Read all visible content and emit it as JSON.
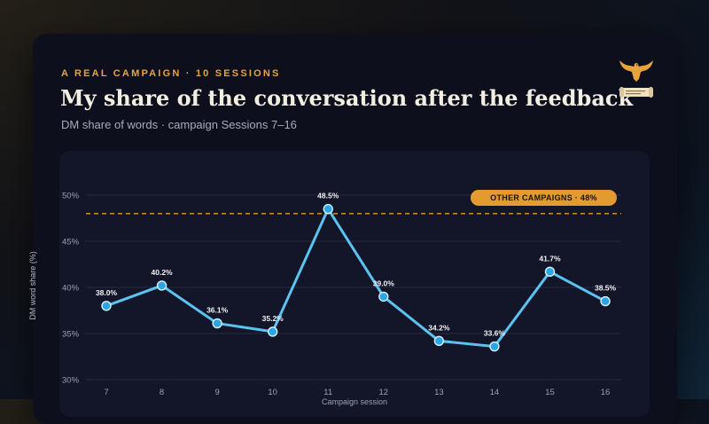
{
  "header": {
    "kicker": "A REAL CAMPAIGN · 10 SESSIONS",
    "title": "My share of the conversation after the feedback",
    "subtitle": "DM share of words · campaign Sessions 7–16"
  },
  "logo": {
    "icon": "eagle-scroll-icon",
    "color": "#e8a33b"
  },
  "colors": {
    "accent": "#e8a33b",
    "line": "#5bc3f0",
    "point_fill": "#2aa6e6",
    "reference": "#e39a2e",
    "grid": "#252a40",
    "tick": "#9aa0b4"
  },
  "chart_data": {
    "type": "line",
    "title": "",
    "xlabel": "Campaign session",
    "ylabel": "DM word share (%)",
    "x": [
      7,
      8,
      9,
      10,
      11,
      12,
      13,
      14,
      15,
      16
    ],
    "series": [
      {
        "values": [
          38.0,
          40.2,
          36.1,
          35.2,
          48.5,
          39.0,
          34.2,
          33.6,
          41.7,
          38.5
        ],
        "labels": [
          "38.0%",
          "40.2%",
          "36.1%",
          "35.2%",
          "48.5%",
          "39.0%",
          "34.2%",
          "33.6%",
          "41.7%",
          "38.5%"
        ]
      }
    ],
    "ylim": [
      30,
      50
    ],
    "yticks": [
      30,
      35,
      40,
      45,
      50
    ],
    "ytick_labels": [
      "30%",
      "35%",
      "40%",
      "45%",
      "50%"
    ],
    "reference_line": {
      "value": 48,
      "label": "OTHER CAMPAIGNS · 48%",
      "style": "dashed"
    },
    "grid": true
  }
}
